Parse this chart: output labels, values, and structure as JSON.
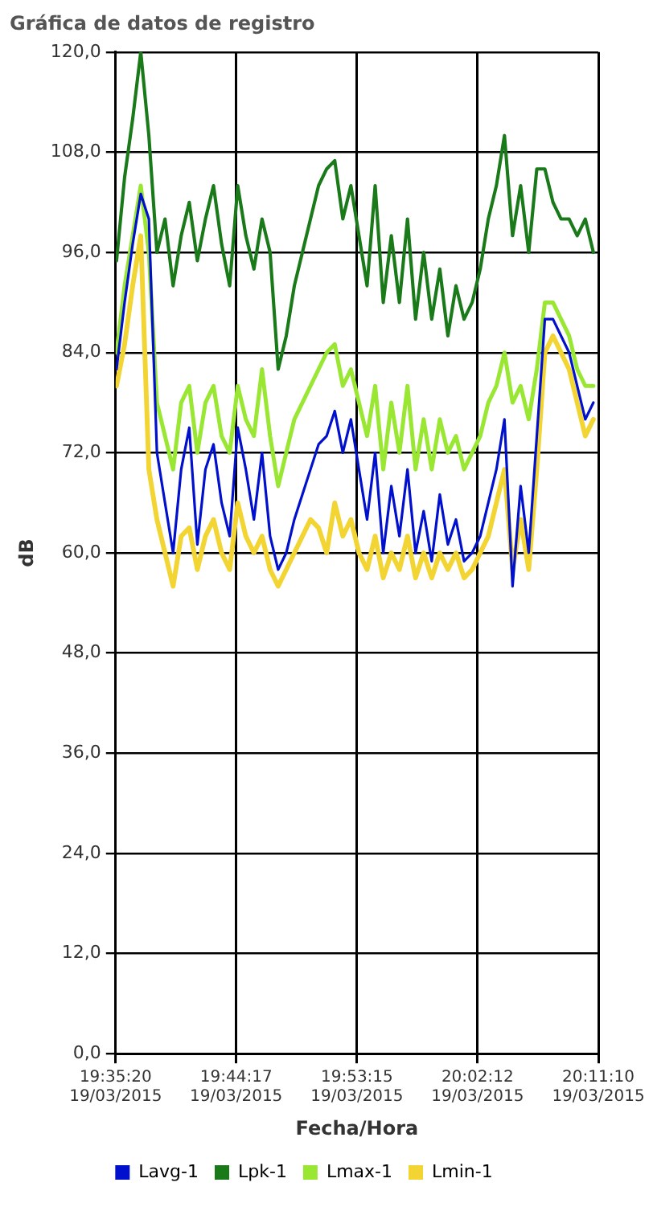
{
  "chart_data": {
    "type": "line",
    "title": "Gráfica de datos de registro",
    "xlabel": "Fecha/Hora",
    "ylabel": "dB",
    "x": [
      "2015-03-19T19:35:24",
      "2015-03-19T19:36:00",
      "2015-03-19T19:36:36",
      "2015-03-19T19:37:12",
      "2015-03-19T19:37:48",
      "2015-03-19T19:38:24",
      "2015-03-19T19:39:00",
      "2015-03-19T19:39:36",
      "2015-03-19T19:40:12",
      "2015-03-19T19:40:48",
      "2015-03-19T19:41:24",
      "2015-03-19T19:42:00",
      "2015-03-19T19:42:36",
      "2015-03-19T19:43:12",
      "2015-03-19T19:43:48",
      "2015-03-19T19:44:24",
      "2015-03-19T19:45:00",
      "2015-03-19T19:45:36",
      "2015-03-19T19:46:12",
      "2015-03-19T19:46:48",
      "2015-03-19T19:47:24",
      "2015-03-19T19:48:00",
      "2015-03-19T19:48:36",
      "2015-03-19T19:49:12",
      "2015-03-19T19:49:48",
      "2015-03-19T19:50:24",
      "2015-03-19T19:51:00",
      "2015-03-19T19:51:36",
      "2015-03-19T19:52:12",
      "2015-03-19T19:52:48",
      "2015-03-19T19:53:24",
      "2015-03-19T19:54:00",
      "2015-03-19T19:54:36",
      "2015-03-19T19:55:12",
      "2015-03-19T19:55:48",
      "2015-03-19T19:56:24",
      "2015-03-19T19:57:00",
      "2015-03-19T19:57:36",
      "2015-03-19T19:58:12",
      "2015-03-19T19:58:48",
      "2015-03-19T19:59:24",
      "2015-03-19T20:00:00",
      "2015-03-19T20:00:36",
      "2015-03-19T20:01:12",
      "2015-03-19T20:01:48",
      "2015-03-19T20:02:24",
      "2015-03-19T20:03:00",
      "2015-03-19T20:03:36",
      "2015-03-19T20:04:12",
      "2015-03-19T20:04:48",
      "2015-03-19T20:05:24",
      "2015-03-19T20:06:00",
      "2015-03-19T20:06:36",
      "2015-03-19T20:07:12",
      "2015-03-19T20:07:48",
      "2015-03-19T20:08:24",
      "2015-03-19T20:09:00",
      "2015-03-19T20:09:36",
      "2015-03-19T20:10:12",
      "2015-03-19T20:10:48"
    ],
    "series": [
      {
        "name": "Lavg-1",
        "color": "#0010cc",
        "values": [
          82,
          90,
          97,
          103,
          100,
          72,
          66,
          60,
          70,
          75,
          61,
          70,
          73,
          66,
          62,
          75,
          70,
          64,
          72,
          62,
          58,
          60,
          64,
          67,
          70,
          73,
          74,
          77,
          72,
          76,
          70,
          64,
          72,
          60,
          68,
          62,
          70,
          60,
          65,
          59,
          67,
          61,
          64,
          59,
          60,
          62,
          66,
          70,
          76,
          56,
          68,
          60,
          74,
          88,
          88,
          86,
          84,
          80,
          76,
          78
        ]
      },
      {
        "name": "Lpk-1",
        "color": "#1a7a1a",
        "values": [
          95,
          105,
          112,
          120,
          110,
          96,
          100,
          92,
          98,
          102,
          95,
          100,
          104,
          97,
          92,
          104,
          98,
          94,
          100,
          96,
          82,
          86,
          92,
          96,
          100,
          104,
          106,
          107,
          100,
          104,
          98,
          92,
          104,
          90,
          98,
          90,
          100,
          88,
          96,
          88,
          94,
          86,
          92,
          88,
          90,
          94,
          100,
          104,
          110,
          98,
          104,
          96,
          106,
          106,
          102,
          100,
          100,
          98,
          100,
          96
        ]
      },
      {
        "name": "Lmax-1",
        "color": "#99e633",
        "values": [
          84,
          92,
          98,
          104,
          96,
          78,
          74,
          70,
          78,
          80,
          72,
          78,
          80,
          74,
          72,
          80,
          76,
          74,
          82,
          74,
          68,
          72,
          76,
          78,
          80,
          82,
          84,
          85,
          80,
          82,
          78,
          74,
          80,
          70,
          78,
          72,
          80,
          70,
          76,
          70,
          76,
          72,
          74,
          70,
          72,
          74,
          78,
          80,
          84,
          78,
          80,
          76,
          82,
          90,
          90,
          88,
          86,
          82,
          80,
          80
        ]
      },
      {
        "name": "Lmin-1",
        "color": "#f2d433",
        "values": [
          80,
          85,
          92,
          98,
          70,
          64,
          60,
          56,
          62,
          63,
          58,
          62,
          64,
          60,
          58,
          66,
          62,
          60,
          62,
          58,
          56,
          58,
          60,
          62,
          64,
          63,
          60,
          66,
          62,
          64,
          60,
          58,
          62,
          57,
          60,
          58,
          62,
          57,
          60,
          57,
          60,
          58,
          60,
          57,
          58,
          60,
          62,
          66,
          70,
          58,
          64,
          58,
          70,
          84,
          86,
          84,
          82,
          78,
          74,
          76
        ]
      }
    ],
    "xlim": [
      "2015-03-19T19:35:20",
      "2015-03-19T20:11:10"
    ],
    "xticks": [
      {
        "value": "2015-03-19T19:35:20",
        "label": "19:35:20\n19/03/2015"
      },
      {
        "value": "2015-03-19T19:44:17",
        "label": "19:44:17\n19/03/2015"
      },
      {
        "value": "2015-03-19T19:53:15",
        "label": "19:53:15\n19/03/2015"
      },
      {
        "value": "2015-03-19T20:02:12",
        "label": "20:02:12\n19/03/2015"
      },
      {
        "value": "2015-03-19T20:11:10",
        "label": "20:11:10\n19/03/2015"
      }
    ],
    "ylim": [
      0,
      120
    ],
    "yticks": [
      {
        "value": 0,
        "label": "0,0"
      },
      {
        "value": 12,
        "label": "12,0"
      },
      {
        "value": 24,
        "label": "24,0"
      },
      {
        "value": 36,
        "label": "36,0"
      },
      {
        "value": 48,
        "label": "48,0"
      },
      {
        "value": 60,
        "label": "60,0"
      },
      {
        "value": 72,
        "label": "72,0"
      },
      {
        "value": 84,
        "label": "84,0"
      },
      {
        "value": 96,
        "label": "96,0"
      },
      {
        "value": 108,
        "label": "108,0"
      },
      {
        "value": 120,
        "label": "120,0"
      }
    ],
    "grid": true,
    "legend": "bottom",
    "marker": "none",
    "line_style": "solid"
  }
}
